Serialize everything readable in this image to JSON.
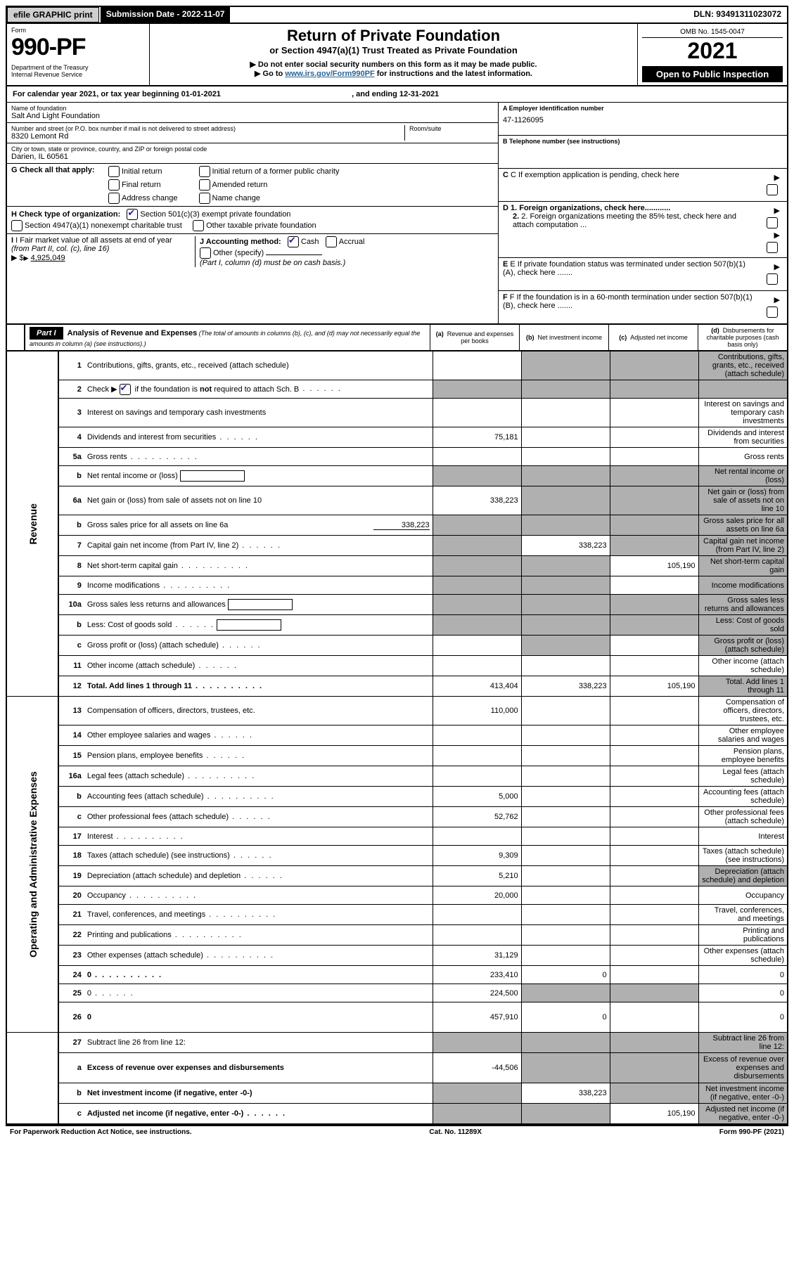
{
  "topbar": {
    "efile": "efile GRAPHIC print",
    "subdate": "Submission Date - 2022-11-07",
    "dln": "DLN: 93491311023072"
  },
  "header": {
    "form_label": "Form",
    "form_number": "990-PF",
    "dept": "Department of the Treasury",
    "irs": "Internal Revenue Service",
    "title": "Return of Private Foundation",
    "subtitle": "or Section 4947(a)(1) Trust Treated as Private Foundation",
    "instr1": "▶ Do not enter social security numbers on this form as it may be made public.",
    "instr2_pre": "▶ Go to ",
    "instr2_link": "www.irs.gov/Form990PF",
    "instr2_post": " for instructions and the latest information.",
    "omb": "OMB No. 1545-0047",
    "year": "2021",
    "open_public": "Open to Public Inspection"
  },
  "calendar": {
    "text_a": "For calendar year 2021, or tax year beginning ",
    "begin": "01-01-2021",
    "text_b": ", and ending ",
    "end": "12-31-2021"
  },
  "org": {
    "name_label": "Name of foundation",
    "name": "Salt And Light Foundation",
    "addr_label": "Number and street (or P.O. box number if mail is not delivered to street address)",
    "addr": "8320 Lemont Rd",
    "room_label": "Room/suite",
    "room": "",
    "city_label": "City or town, state or province, country, and ZIP or foreign postal code",
    "city": "Darien, IL  60561"
  },
  "right": {
    "a_label": "A Employer identification number",
    "ein": "47-1126095",
    "b_label": "B Telephone number (see instructions)",
    "phone": "",
    "c_label": "C If exemption application is pending, check here",
    "d1": "D 1. Foreign organizations, check here............",
    "d2": "2. Foreign organizations meeting the 85% test, check here and attach computation ...",
    "e": "E  If private foundation status was terminated under section 507(b)(1)(A), check here .......",
    "f": "F  If the foundation is in a 60-month termination under section 507(b)(1)(B), check here .......",
    "arrow": "▶"
  },
  "g": {
    "label": "G Check all that apply:",
    "opts": [
      "Initial return",
      "Final return",
      "Address change",
      "Initial return of a former public charity",
      "Amended return",
      "Name change"
    ]
  },
  "h": {
    "label": "H Check type of organization:",
    "o1": "Section 501(c)(3) exempt private foundation",
    "o2": "Section 4947(a)(1) nonexempt charitable trust",
    "o3": "Other taxable private foundation"
  },
  "i": {
    "label_a": "I Fair market value of all assets at end of year ",
    "label_b": "(from Part II, col. (c), line 16)",
    "arrow": "▶ $",
    "value": "4,925,049"
  },
  "j": {
    "label": "J Accounting method:",
    "cash": "Cash",
    "accrual": "Accrual",
    "other": "Other (specify)",
    "note": "(Part I, column (d) must be on cash basis.)"
  },
  "part1": {
    "label": "Part I",
    "title": "Analysis of Revenue and Expenses",
    "note": " (The total of amounts in columns (b), (c), and (d) may not necessarily equal the amounts in column (a) (see instructions).)",
    "col_a": "Revenue and expenses per books",
    "col_b": "Net investment income",
    "col_c": "Adjusted net income",
    "col_d": "Disbursements for charitable purposes (cash basis only)",
    "col_a_pre": "(a)",
    "col_b_pre": "(b)",
    "col_c_pre": "(c)",
    "col_d_pre": "(d)"
  },
  "sidelabels": {
    "rev": "Revenue",
    "exp": "Operating and Administrative Expenses"
  },
  "rows": {
    "r1": {
      "n": "1",
      "d": "Contributions, gifts, grants, etc., received (attach schedule)",
      "a": "",
      "grey": [
        "b",
        "c",
        "d"
      ]
    },
    "r2": {
      "n": "2",
      "d_pre": "Check ▶ ",
      "d_post": " if the foundation is not required to attach Sch. B",
      "checked": true,
      "grey": [
        "a",
        "b",
        "c",
        "d"
      ],
      "dots": "s"
    },
    "r3": {
      "n": "3",
      "d": "Interest on savings and temporary cash investments"
    },
    "r4": {
      "n": "4",
      "d": "Dividends and interest from securities",
      "a": "75,181",
      "dots": "s"
    },
    "r5a": {
      "n": "5a",
      "d": "Gross rents",
      "dots": "m"
    },
    "r5b": {
      "n": "b",
      "d": "Net rental income or (loss)",
      "inline": true,
      "grey": [
        "a",
        "b",
        "c",
        "d"
      ]
    },
    "r6a": {
      "n": "6a",
      "d": "Net gain or (loss) from sale of assets not on line 10",
      "a": "338,223",
      "grey": [
        "b",
        "c",
        "d"
      ]
    },
    "r6b": {
      "n": "b",
      "d": "Gross sales price for all assets on line 6a",
      "inline_val": "338,223",
      "grey": [
        "a",
        "b",
        "c",
        "d"
      ]
    },
    "r7": {
      "n": "7",
      "d": "Capital gain net income (from Part IV, line 2)",
      "b": "338,223",
      "grey": [
        "a",
        "c",
        "d"
      ],
      "dots": "s"
    },
    "r8": {
      "n": "8",
      "d": "Net short-term capital gain",
      "c": "105,190",
      "grey": [
        "a",
        "b",
        "d"
      ],
      "dots": "m"
    },
    "r9": {
      "n": "9",
      "d": "Income modifications",
      "grey": [
        "a",
        "b",
        "d"
      ],
      "dots": "m"
    },
    "r10a": {
      "n": "10a",
      "d": "Gross sales less returns and allowances",
      "inline": true,
      "grey": [
        "a",
        "b",
        "c",
        "d"
      ]
    },
    "r10b": {
      "n": "b",
      "d": "Less: Cost of goods sold",
      "inline": true,
      "grey": [
        "a",
        "b",
        "c",
        "d"
      ],
      "dots": "s"
    },
    "r10c": {
      "n": "c",
      "d": "Gross profit or (loss) (attach schedule)",
      "grey": [
        "b",
        "d"
      ],
      "dots": "s"
    },
    "r11": {
      "n": "11",
      "d": "Other income (attach schedule)",
      "dots": "s"
    },
    "r12": {
      "n": "12",
      "d": "Total. Add lines 1 through 11",
      "a": "413,404",
      "b": "338,223",
      "c": "105,190",
      "bold": true,
      "grey": [
        "d"
      ],
      "dots": "m"
    },
    "r13": {
      "n": "13",
      "d": "Compensation of officers, directors, trustees, etc.",
      "a": "110,000"
    },
    "r14": {
      "n": "14",
      "d": "Other employee salaries and wages",
      "dots": "s"
    },
    "r15": {
      "n": "15",
      "d": "Pension plans, employee benefits",
      "dots": "s"
    },
    "r16a": {
      "n": "16a",
      "d": "Legal fees (attach schedule)",
      "dots": "m"
    },
    "r16b": {
      "n": "b",
      "d": "Accounting fees (attach schedule)",
      "a": "5,000",
      "dots": "m"
    },
    "r16c": {
      "n": "c",
      "d": "Other professional fees (attach schedule)",
      "a": "52,762",
      "dots": "s"
    },
    "r17": {
      "n": "17",
      "d": "Interest",
      "dots": "m"
    },
    "r18": {
      "n": "18",
      "d": "Taxes (attach schedule) (see instructions)",
      "a": "9,309",
      "dots": "s"
    },
    "r19": {
      "n": "19",
      "d": "Depreciation (attach schedule) and depletion",
      "a": "5,210",
      "grey": [
        "d"
      ],
      "dots": "s"
    },
    "r20": {
      "n": "20",
      "d": "Occupancy",
      "a": "20,000",
      "dots": "m"
    },
    "r21": {
      "n": "21",
      "d": "Travel, conferences, and meetings",
      "dots": "m"
    },
    "r22": {
      "n": "22",
      "d": "Printing and publications",
      "dots": "m"
    },
    "r23": {
      "n": "23",
      "d": "Other expenses (attach schedule)",
      "a": "31,129",
      "dots": "m"
    },
    "r24": {
      "n": "24",
      "d": "0",
      "a": "233,410",
      "b": "0",
      "bold": true,
      "dots": "m"
    },
    "r25": {
      "n": "25",
      "d": "0",
      "a": "224,500",
      "grey": [
        "b",
        "c"
      ],
      "dots": "s"
    },
    "r26": {
      "n": "26",
      "d": "0",
      "a": "457,910",
      "b": "0",
      "bold": true,
      "tall": true
    },
    "r27": {
      "n": "27",
      "d": "Subtract line 26 from line 12:",
      "grey": [
        "a",
        "b",
        "c",
        "d"
      ]
    },
    "r27a": {
      "n": "a",
      "d": "Excess of revenue over expenses and disbursements",
      "a": "-44,506",
      "bold": true,
      "grey": [
        "b",
        "c",
        "d"
      ],
      "tall": true
    },
    "r27b": {
      "n": "b",
      "d": "Net investment income (if negative, enter -0-)",
      "b": "338,223",
      "bold": true,
      "grey": [
        "a",
        "c",
        "d"
      ]
    },
    "r27c": {
      "n": "c",
      "d": "Adjusted net income (if negative, enter -0-)",
      "c": "105,190",
      "bold": true,
      "grey": [
        "a",
        "b",
        "d"
      ],
      "dots": "s"
    }
  },
  "footer": {
    "left": "For Paperwork Reduction Act Notice, see instructions.",
    "mid": "Cat. No. 11289X",
    "right": "Form 990-PF (2021)"
  }
}
